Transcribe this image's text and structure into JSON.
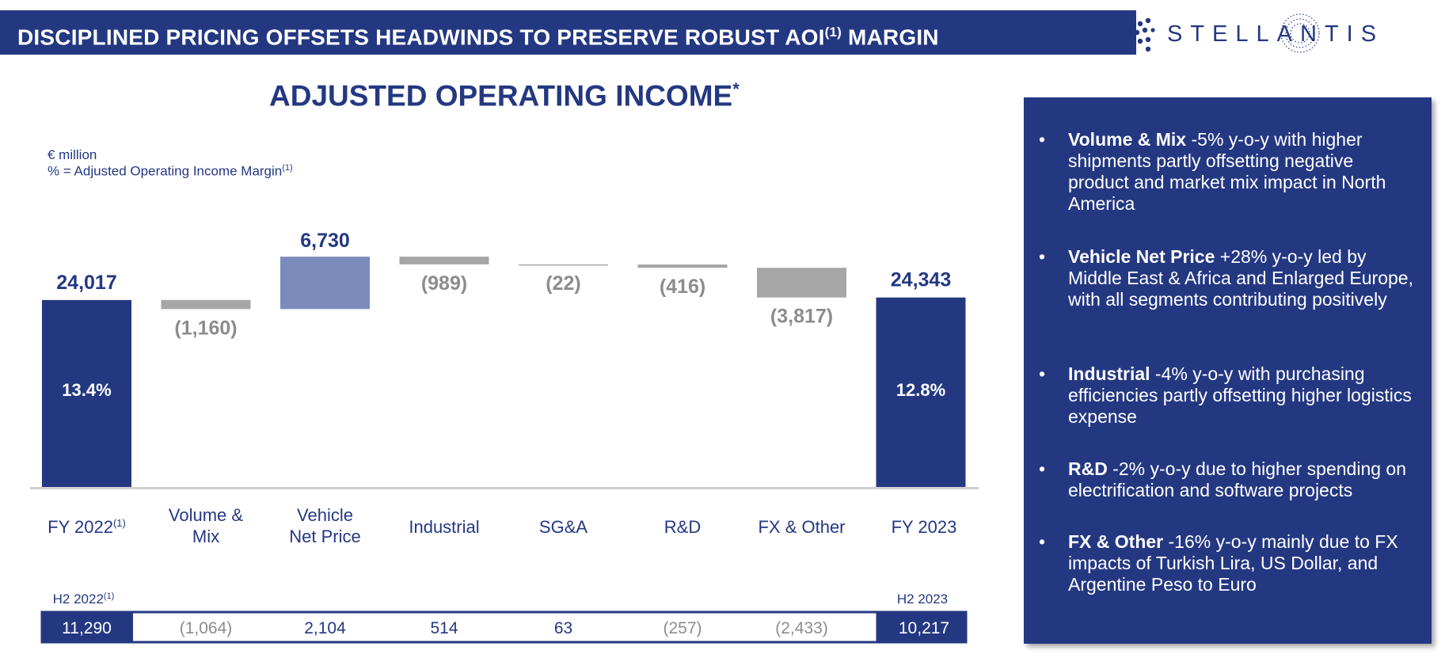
{
  "header": {
    "title": "DISCIPLINED PRICING OFFSETS HEADWINDS TO PRESERVE ROBUST AOI",
    "title_sup": "(1)",
    "title_end": "MARGIN",
    "logo_text": "STELLANTIS"
  },
  "chart_title": {
    "text": "ADJUSTED OPERATING INCOME",
    "sup": "*"
  },
  "units": {
    "line1": "€ million",
    "line2": "% = Adjusted Operating Income Margin",
    "line2_sup": "(1)"
  },
  "chart_data": {
    "type": "bar",
    "subtype": "waterfall",
    "categories": [
      "FY 2022",
      "Volume & Mix",
      "Vehicle Net Price",
      "Industrial",
      "SG&A",
      "R&D",
      "FX & Other",
      "FY 2023"
    ],
    "category_sups": [
      "(1)",
      "",
      "",
      "",
      "",
      "",
      "",
      ""
    ],
    "values": [
      24017,
      -1160,
      6730,
      -989,
      -22,
      -416,
      -3817,
      24343
    ],
    "value_labels": [
      "24,017",
      "(1,160)",
      "6,730",
      "(989)",
      "(22)",
      "(416)",
      "(3,817)",
      "24,343"
    ],
    "bar_kinds": [
      "total",
      "delta",
      "delta",
      "delta",
      "delta",
      "delta",
      "delta",
      "total"
    ],
    "margins": [
      "13.4%",
      "",
      "",
      "",
      "",
      "",
      "",
      "12.8%"
    ],
    "colors": {
      "total": "#243882",
      "positive": "#7b8bbb",
      "negative": "#a6a6a6",
      "baseline": "#d0d0d0"
    },
    "h2": {
      "left_label": "H2 2022",
      "left_label_sup": "(1)",
      "right_label": "H2 2023",
      "values": [
        "11,290",
        "(1,064)",
        "2,104",
        "514",
        "63",
        "(257)",
        "(2,433)",
        "10,217"
      ]
    }
  },
  "side_panel": {
    "items": [
      {
        "bold": "Volume & Mix",
        "text": " -5% y-o-y with higher shipments partly offsetting negative product and market mix impact in North America"
      },
      {
        "bold": "Vehicle Net Price",
        "text": " +28% y-o-y led by Middle East & Africa and Enlarged Europe, with all segments contributing positively"
      },
      {
        "bold": "Industrial",
        "text": " -4% y-o-y with purchasing efficiencies partly offsetting higher logistics expense"
      },
      {
        "bold": "R&D",
        "text": " -2% y-o-y due to higher spending on electrification and software projects"
      },
      {
        "bold": "FX & Other",
        "text": " -16% y-o-y mainly due to FX impacts of Turkish Lira, US Dollar, and Argentine Peso to Euro"
      }
    ]
  }
}
